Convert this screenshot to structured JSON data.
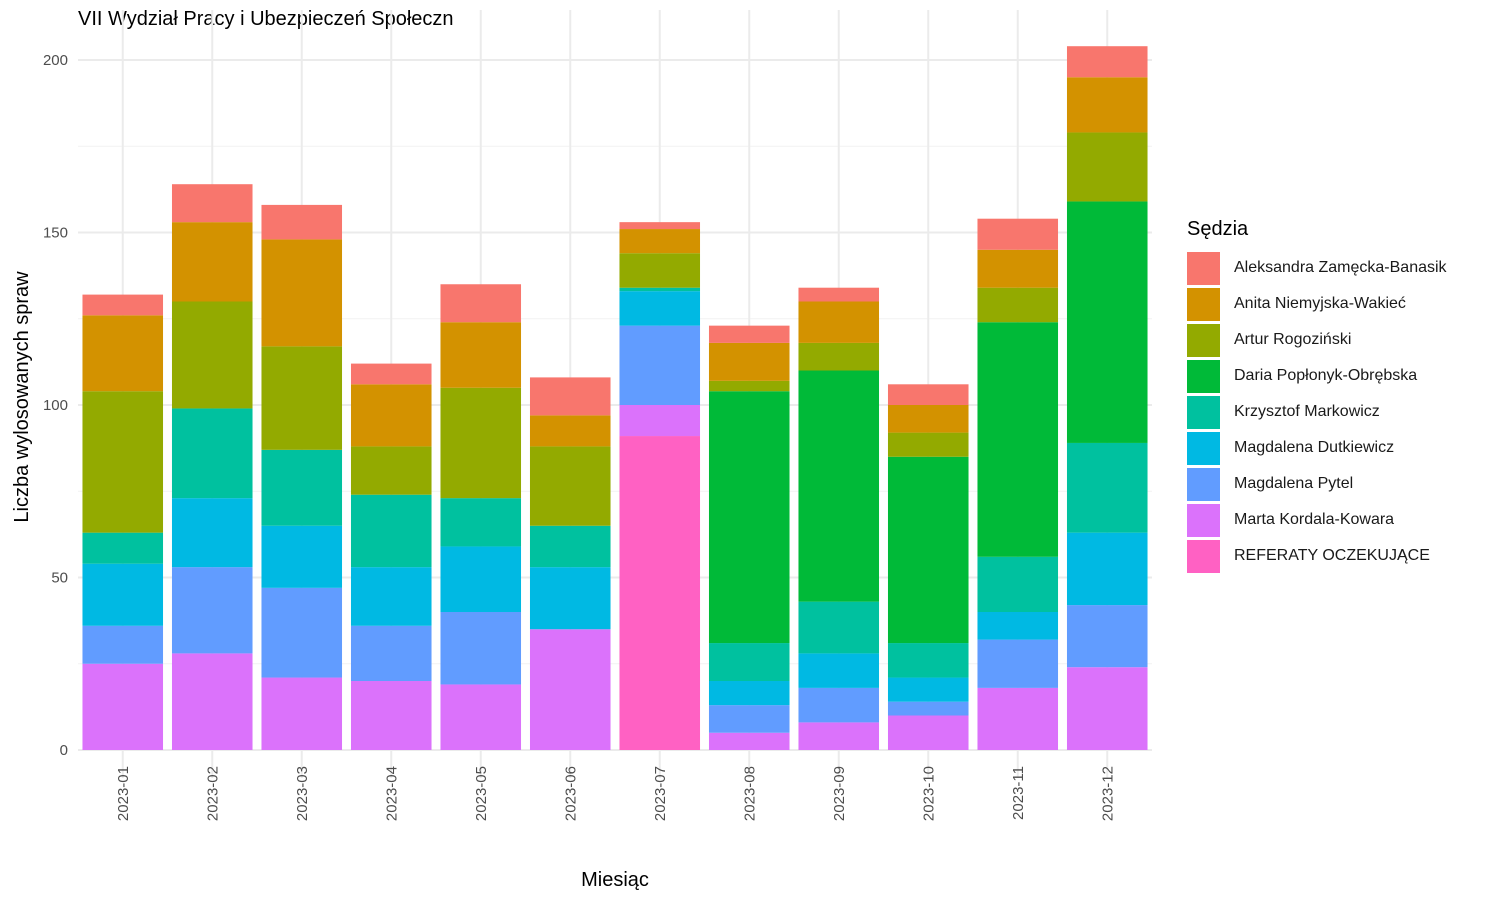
{
  "chart_data": {
    "type": "bar",
    "stacked": true,
    "title": "VII Wydział Pracy i Ubezpieczeń Społeczn",
    "xlabel": "Miesiąc",
    "ylabel": "Liczba wylosowanych spraw",
    "ylim": [
      0,
      210
    ],
    "yticks": [
      0,
      50,
      100,
      150,
      200
    ],
    "grid": true,
    "legend_title": "Sędzia",
    "legend_position": "right",
    "categories": [
      "2023-01",
      "2023-02",
      "2023-03",
      "2023-04",
      "2023-05",
      "2023-06",
      "2023-07",
      "2023-08",
      "2023-09",
      "2023-10",
      "2023-11",
      "2023-12"
    ],
    "series": [
      {
        "name": "Aleksandra Zamęcka-Banasik",
        "color": "#F8766D",
        "values": [
          6,
          11,
          10,
          6,
          11,
          11,
          2,
          5,
          4,
          6,
          9,
          9
        ]
      },
      {
        "name": "Anita Niemyjska-Wakieć",
        "color": "#D39200",
        "values": [
          22,
          23,
          31,
          18,
          19,
          9,
          7,
          11,
          12,
          8,
          11,
          16
        ]
      },
      {
        "name": "Artur Rogoziński",
        "color": "#93AA00",
        "values": [
          41,
          31,
          30,
          14,
          32,
          23,
          10,
          3,
          8,
          7,
          10,
          20
        ]
      },
      {
        "name": "Daria Popłonyk-Obrębska",
        "color": "#00BA38",
        "values": [
          0,
          0,
          0,
          0,
          0,
          0,
          0,
          73,
          67,
          54,
          68,
          70
        ]
      },
      {
        "name": "Krzysztof Markowicz",
        "color": "#00C19F",
        "values": [
          9,
          26,
          22,
          21,
          14,
          12,
          1,
          11,
          15,
          10,
          16,
          26
        ]
      },
      {
        "name": "Magdalena Dutkiewicz",
        "color": "#00B9E3",
        "values": [
          18,
          20,
          18,
          17,
          19,
          18,
          10,
          7,
          10,
          7,
          8,
          21
        ]
      },
      {
        "name": "Magdalena Pytel",
        "color": "#619CFF",
        "values": [
          11,
          25,
          26,
          16,
          21,
          0,
          23,
          8,
          10,
          4,
          14,
          18
        ]
      },
      {
        "name": "Marta Kordala-Kowara",
        "color": "#DB72FB",
        "values": [
          25,
          28,
          21,
          20,
          19,
          35,
          9,
          5,
          8,
          10,
          18,
          24
        ]
      },
      {
        "name": "REFERATY OCZEKUJĄCE",
        "color": "#FF61C3",
        "values": [
          0,
          0,
          0,
          0,
          0,
          0,
          91,
          0,
          0,
          0,
          0,
          0
        ]
      }
    ]
  }
}
